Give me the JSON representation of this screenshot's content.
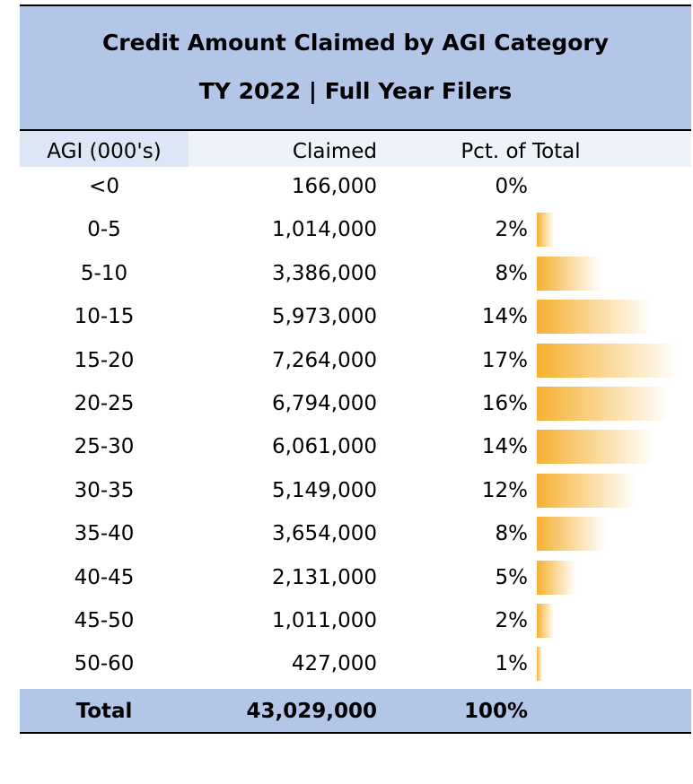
{
  "header": {
    "title": [
      "Credit Amount Claimed by AGI Category",
      "TY 2022 | Full Year Filers"
    ]
  },
  "table": {
    "columns": [
      "AGI (000's)",
      "Claimed",
      "Pct. of Total"
    ],
    "rows": [
      [
        "<0",
        "166,000",
        "0%"
      ],
      [
        "0-5",
        "1,014,000",
        "2%"
      ],
      [
        "5-10",
        "3,386,000",
        "8%"
      ],
      [
        "10-15",
        "5,973,000",
        "14%"
      ],
      [
        "15-20",
        "7,264,000",
        "17%"
      ],
      [
        "20-25",
        "6,794,000",
        "16%"
      ],
      [
        "25-30",
        "6,061,000",
        "14%"
      ],
      [
        "30-35",
        "5,149,000",
        "12%"
      ],
      [
        "35-40",
        "3,654,000",
        "8%"
      ],
      [
        "40-45",
        "2,131,000",
        "5%"
      ],
      [
        "45-50",
        "1,011,000",
        "2%"
      ],
      [
        "50-60",
        "427,000",
        "1%"
      ]
    ],
    "total": [
      "Total",
      "43,029,000",
      "100%"
    ]
  }
}
